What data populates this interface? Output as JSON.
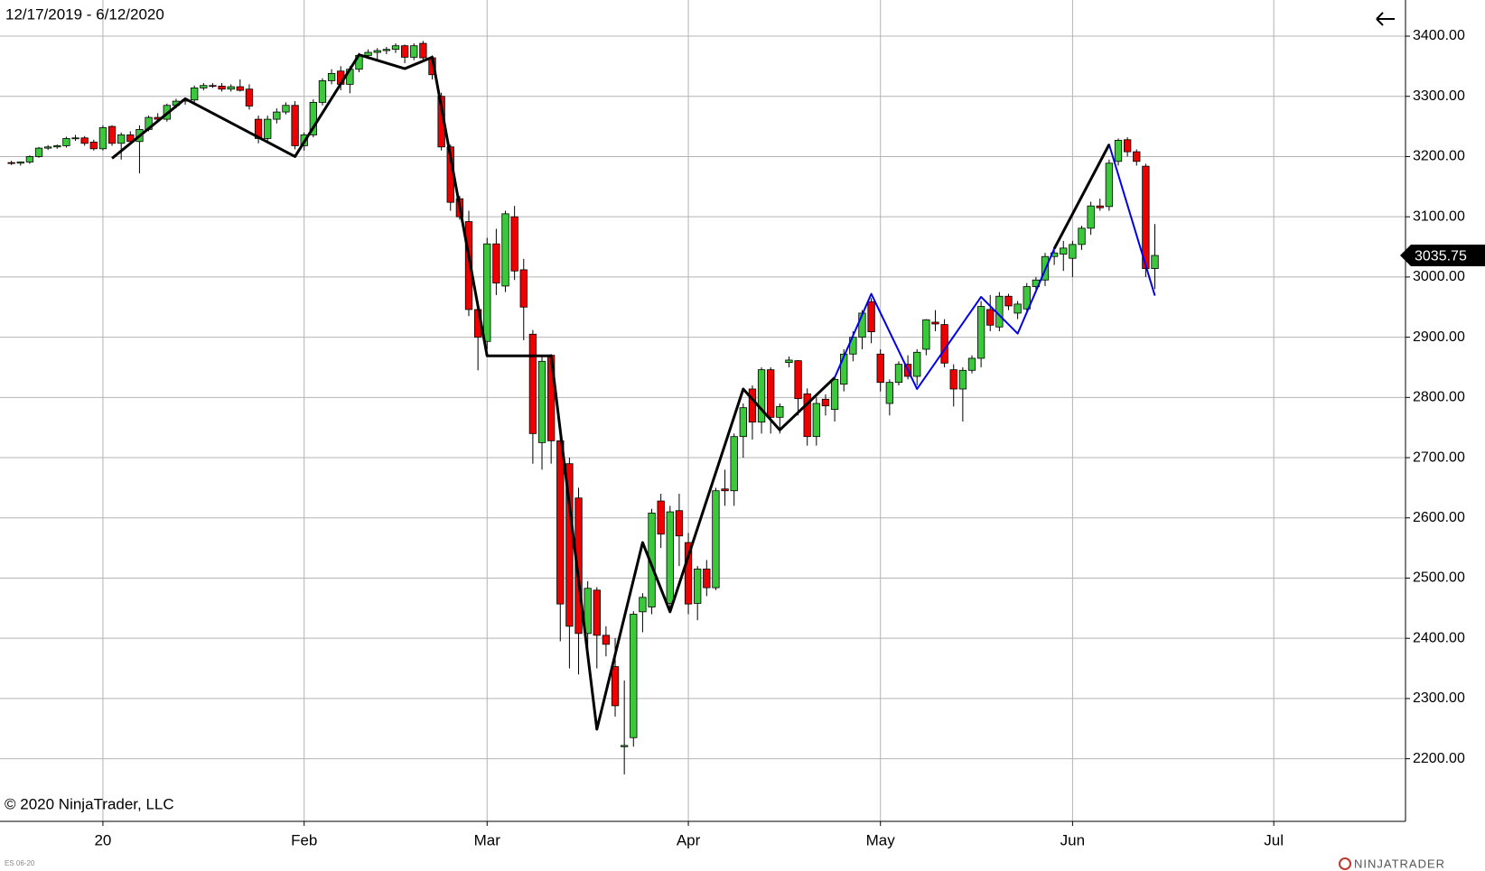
{
  "chart_data": {
    "type": "candlestick",
    "date_range": "12/17/2019 - 6/12/2020",
    "copyright": "© 2020 NinjaTrader, LLC",
    "instrument": "ES 06-20",
    "brand": "NINJATRADER",
    "up_color": "#3cc83c",
    "down_color": "#ee0000",
    "ohlc": [
      [
        3190,
        3193,
        3186,
        3189
      ],
      [
        3189,
        3192,
        3185,
        3191
      ],
      [
        3191,
        3202,
        3188,
        3200
      ],
      [
        3200,
        3216,
        3198,
        3214
      ],
      [
        3214,
        3219,
        3211,
        3216
      ],
      [
        3216,
        3220,
        3213,
        3218
      ],
      [
        3218,
        3233,
        3215,
        3230
      ],
      [
        3230,
        3236,
        3226,
        3231
      ],
      [
        3231,
        3234,
        3218,
        3222
      ],
      [
        3224,
        3228,
        3210,
        3213
      ],
      [
        3213,
        3252,
        3210,
        3248
      ],
      [
        3250,
        3252,
        3218,
        3222
      ],
      [
        3222,
        3240,
        3195,
        3236
      ],
      [
        3236,
        3242,
        3220,
        3225
      ],
      [
        3225,
        3252,
        3172,
        3245
      ],
      [
        3245,
        3268,
        3242,
        3265
      ],
      [
        3265,
        3272,
        3258,
        3262
      ],
      [
        3262,
        3288,
        3258,
        3285
      ],
      [
        3285,
        3296,
        3280,
        3292
      ],
      [
        3292,
        3296,
        3286,
        3294
      ],
      [
        3294,
        3318,
        3290,
        3314
      ],
      [
        3314,
        3322,
        3310,
        3318
      ],
      [
        3318,
        3322,
        3314,
        3317
      ],
      [
        3317,
        3322,
        3308,
        3312
      ],
      [
        3312,
        3320,
        3308,
        3316
      ],
      [
        3316,
        3328,
        3308,
        3310
      ],
      [
        3312,
        3320,
        3278,
        3284
      ],
      [
        3262,
        3268,
        3222,
        3230
      ],
      [
        3230,
        3268,
        3226,
        3262
      ],
      [
        3262,
        3280,
        3255,
        3274
      ],
      [
        3274,
        3290,
        3270,
        3285
      ],
      [
        3285,
        3292,
        3212,
        3218
      ],
      [
        3218,
        3240,
        3210,
        3236
      ],
      [
        3236,
        3295,
        3232,
        3290
      ],
      [
        3290,
        3330,
        3285,
        3326
      ],
      [
        3326,
        3345,
        3320,
        3338
      ],
      [
        3342,
        3350,
        3310,
        3320
      ],
      [
        3320,
        3350,
        3305,
        3345
      ],
      [
        3345,
        3372,
        3340,
        3368
      ],
      [
        3368,
        3378,
        3362,
        3373
      ],
      [
        3373,
        3380,
        3360,
        3376
      ],
      [
        3376,
        3382,
        3370,
        3378
      ],
      [
        3378,
        3388,
        3372,
        3384
      ],
      [
        3384,
        3386,
        3355,
        3365
      ],
      [
        3365,
        3388,
        3360,
        3384
      ],
      [
        3388,
        3392,
        3360,
        3364
      ],
      [
        3364,
        3368,
        3328,
        3336
      ],
      [
        3300,
        3306,
        3210,
        3216
      ],
      [
        3216,
        3220,
        3110,
        3124
      ],
      [
        3130,
        3135,
        3095,
        3100
      ],
      [
        3092,
        3110,
        2935,
        2946
      ],
      [
        2946,
        2960,
        2845,
        2900
      ],
      [
        2893,
        3065,
        2880,
        3055
      ],
      [
        3055,
        3080,
        2970,
        2990
      ],
      [
        2985,
        3110,
        2975,
        3105
      ],
      [
        3100,
        3118,
        2995,
        3010
      ],
      [
        3012,
        3030,
        2895,
        2950
      ],
      [
        2905,
        2912,
        2690,
        2740
      ],
      [
        2725,
        2870,
        2680,
        2860
      ],
      [
        2870,
        2872,
        2690,
        2728
      ],
      [
        2728,
        2735,
        2395,
        2457
      ],
      [
        2690,
        2700,
        2350,
        2420
      ],
      [
        2633,
        2650,
        2340,
        2408
      ],
      [
        2408,
        2495,
        2380,
        2483
      ],
      [
        2480,
        2485,
        2350,
        2405
      ],
      [
        2405,
        2420,
        2370,
        2390
      ],
      [
        2353,
        2400,
        2270,
        2288
      ],
      [
        2220,
        2330,
        2174,
        2222
      ],
      [
        2235,
        2445,
        2220,
        2440
      ],
      [
        2444,
        2475,
        2410,
        2468
      ],
      [
        2452,
        2615,
        2440,
        2608
      ],
      [
        2628,
        2640,
        2550,
        2573
      ],
      [
        2458,
        2620,
        2450,
        2610
      ],
      [
        2612,
        2640,
        2520,
        2570
      ],
      [
        2559,
        2575,
        2440,
        2457
      ],
      [
        2458,
        2520,
        2430,
        2515
      ],
      [
        2515,
        2530,
        2470,
        2484
      ],
      [
        2484,
        2650,
        2480,
        2645
      ],
      [
        2648,
        2680,
        2620,
        2645
      ],
      [
        2645,
        2740,
        2620,
        2735
      ],
      [
        2735,
        2790,
        2700,
        2783
      ],
      [
        2814,
        2820,
        2730,
        2759
      ],
      [
        2759,
        2850,
        2740,
        2846
      ],
      [
        2846,
        2850,
        2740,
        2767
      ],
      [
        2767,
        2790,
        2740,
        2785
      ],
      [
        2858,
        2868,
        2850,
        2862
      ],
      [
        2861,
        2862,
        2770,
        2798
      ],
      [
        2806,
        2815,
        2720,
        2735
      ],
      [
        2735,
        2800,
        2720,
        2790
      ],
      [
        2797,
        2805,
        2770,
        2786
      ],
      [
        2780,
        2835,
        2760,
        2830
      ],
      [
        2822,
        2880,
        2810,
        2872
      ],
      [
        2872,
        2910,
        2860,
        2900
      ],
      [
        2900,
        2945,
        2880,
        2940
      ],
      [
        2959,
        2965,
        2890,
        2909
      ],
      [
        2872,
        2880,
        2810,
        2825
      ],
      [
        2790,
        2830,
        2770,
        2825
      ],
      [
        2825,
        2860,
        2820,
        2855
      ],
      [
        2855,
        2870,
        2830,
        2835
      ],
      [
        2835,
        2880,
        2820,
        2875
      ],
      [
        2880,
        2930,
        2870,
        2929
      ],
      [
        2925,
        2945,
        2910,
        2922
      ],
      [
        2921,
        2930,
        2850,
        2857
      ],
      [
        2846,
        2855,
        2785,
        2814
      ],
      [
        2814,
        2850,
        2760,
        2845
      ],
      [
        2845,
        2870,
        2840,
        2865
      ],
      [
        2865,
        2960,
        2850,
        2951
      ],
      [
        2946,
        2970,
        2910,
        2920
      ],
      [
        2917,
        2975,
        2910,
        2968
      ],
      [
        2968,
        2972,
        2945,
        2952
      ],
      [
        2940,
        2960,
        2930,
        2955
      ],
      [
        2947,
        2990,
        2940,
        2984
      ],
      [
        2984,
        3000,
        2975,
        2995
      ],
      [
        2995,
        3040,
        2985,
        3034
      ],
      [
        3034,
        3045,
        3020,
        3040
      ],
      [
        3038,
        3060,
        3010,
        3048
      ],
      [
        3031,
        3060,
        3000,
        3054
      ],
      [
        3054,
        3085,
        3045,
        3081
      ],
      [
        3081,
        3125,
        3070,
        3118
      ],
      [
        3118,
        3130,
        3110,
        3115
      ],
      [
        3117,
        3195,
        3110,
        3189
      ],
      [
        3192,
        3230,
        3185,
        3227
      ],
      [
        3228,
        3232,
        3200,
        3208
      ],
      [
        3208,
        3212,
        3185,
        3192
      ],
      [
        3184,
        3188,
        3000,
        3014
      ],
      [
        3014,
        3088,
        2980,
        3035.75
      ]
    ],
    "lines": [
      {
        "color": "#0000ee",
        "x": [
          90,
          94,
          99,
          106,
          110,
          114,
          120,
          125
        ],
        "y": [
          2833,
          2972,
          2814,
          2967,
          2906,
          3047,
          3220,
          2969
        ]
      },
      {
        "color": "#000000",
        "x": [
          11,
          19,
          31,
          38,
          43,
          46,
          52,
          59,
          64,
          69,
          72,
          80,
          84,
          90,
          null,
          114,
          120
        ],
        "y": [
          3197,
          3296,
          3200,
          3369,
          3346,
          3365,
          2869,
          2869,
          2249,
          2559,
          2444,
          2814,
          2746,
          2833,
          null,
          3047,
          3220
        ]
      }
    ],
    "xlim": [
      -1.25,
      152.4
    ],
    "xticks": [
      {
        "value": 10,
        "label": "20"
      },
      {
        "value": 32,
        "label": "Feb"
      },
      {
        "value": 52,
        "label": "Mar"
      },
      {
        "value": 74,
        "label": "Apr"
      },
      {
        "value": 95,
        "label": "May"
      },
      {
        "value": 116,
        "label": "Jun"
      },
      {
        "value": 138,
        "label": "Jul"
      }
    ],
    "ylim": [
      2096,
      3460
    ],
    "yticks": [
      {
        "value": 2200,
        "label": "2200.00"
      },
      {
        "value": 2300,
        "label": "2300.00"
      },
      {
        "value": 2400,
        "label": "2400.00"
      },
      {
        "value": 2500,
        "label": "2500.00"
      },
      {
        "value": 2600,
        "label": "2600.00"
      },
      {
        "value": 2700,
        "label": "2700.00"
      },
      {
        "value": 2800,
        "label": "2800.00"
      },
      {
        "value": 2900,
        "label": "2900.00"
      },
      {
        "value": 3000,
        "label": "3000.00"
      },
      {
        "value": 3100,
        "label": "3100.00"
      },
      {
        "value": 3200,
        "label": "3200.00"
      },
      {
        "value": 3300,
        "label": "3300.00"
      },
      {
        "value": 3400,
        "label": "3400.00"
      }
    ],
    "grid": true
  }
}
